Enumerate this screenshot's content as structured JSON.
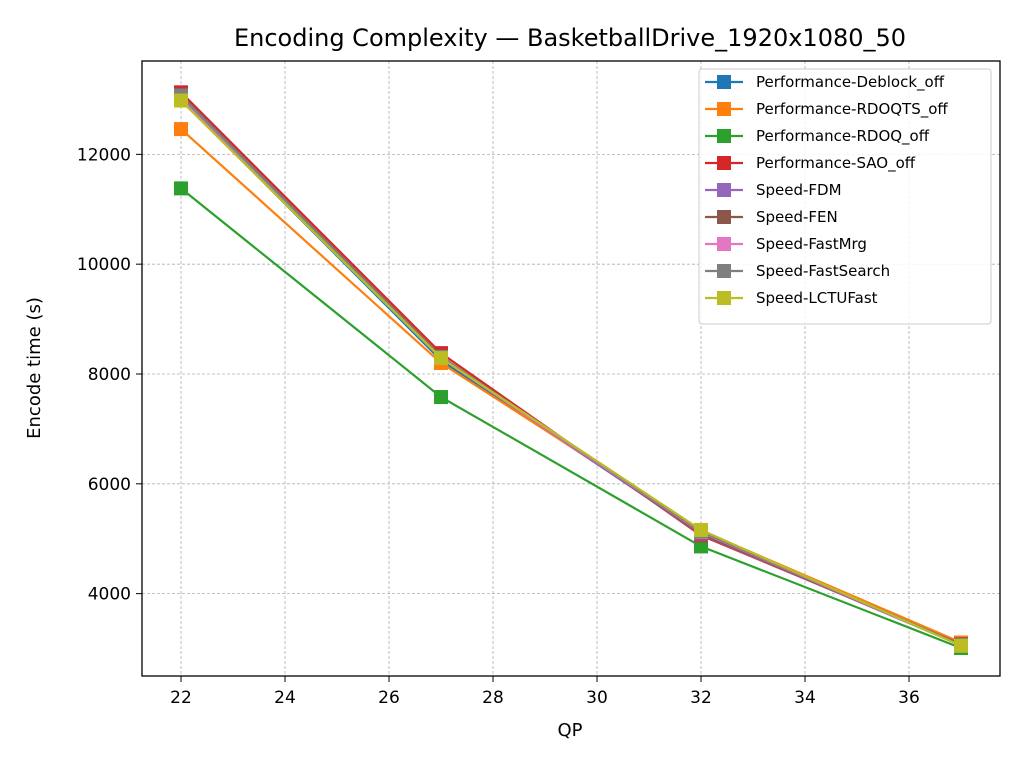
{
  "chart_data": {
    "type": "line",
    "title": "Encoding Complexity — BasketballDrive_1920x1080_50",
    "xlabel": "QP",
    "ylabel": "Encode time (s)",
    "xlim": [
      21.25,
      37.75
    ],
    "ylim": [
      2500,
      13700
    ],
    "xticks": [
      22,
      24,
      26,
      28,
      30,
      32,
      34,
      36
    ],
    "yticks": [
      4000,
      6000,
      8000,
      10000,
      12000
    ],
    "grid": true,
    "legend_position": "top-right",
    "marker": "square",
    "series": [
      {
        "name": "Performance-Deblock_off",
        "color": "#1f77b4",
        "x": [
          22,
          27,
          32,
          37
        ],
        "y": [
          13000,
          8250,
          5100,
          3070
        ]
      },
      {
        "name": "Performance-RDOQTS_off",
        "color": "#ff7f0e",
        "x": [
          22,
          27,
          32,
          37
        ],
        "y": [
          12460,
          8200,
          5150,
          3110
        ]
      },
      {
        "name": "Performance-RDOQ_off",
        "color": "#2ca02c",
        "x": [
          22,
          27,
          32,
          37
        ],
        "y": [
          11380,
          7580,
          4860,
          3010
        ]
      },
      {
        "name": "Performance-SAO_off",
        "color": "#d62728",
        "x": [
          22,
          27,
          32,
          37
        ],
        "y": [
          13130,
          8380,
          5060,
          3080
        ]
      },
      {
        "name": "Speed-FDM",
        "color": "#9467bd",
        "x": [
          22,
          27,
          32,
          37
        ],
        "y": [
          13050,
          8300,
          5080,
          3060
        ]
      },
      {
        "name": "Speed-FEN",
        "color": "#8c564b",
        "x": [
          22,
          27,
          32,
          37
        ],
        "y": [
          13080,
          8320,
          5090,
          3070
        ]
      },
      {
        "name": "Speed-FastMrg",
        "color": "#e377c2",
        "x": [
          22,
          27,
          32,
          37
        ],
        "y": [
          13000,
          8290,
          5120,
          3060
        ]
      },
      {
        "name": "Speed-FastSearch",
        "color": "#7f7f7f",
        "x": [
          22,
          27,
          32,
          37
        ],
        "y": [
          13070,
          8310,
          5130,
          3070
        ]
      },
      {
        "name": "Speed-LCTUFast",
        "color": "#bcbd22",
        "x": [
          22,
          27,
          32,
          37
        ],
        "y": [
          12980,
          8290,
          5160,
          3050
        ]
      }
    ]
  }
}
